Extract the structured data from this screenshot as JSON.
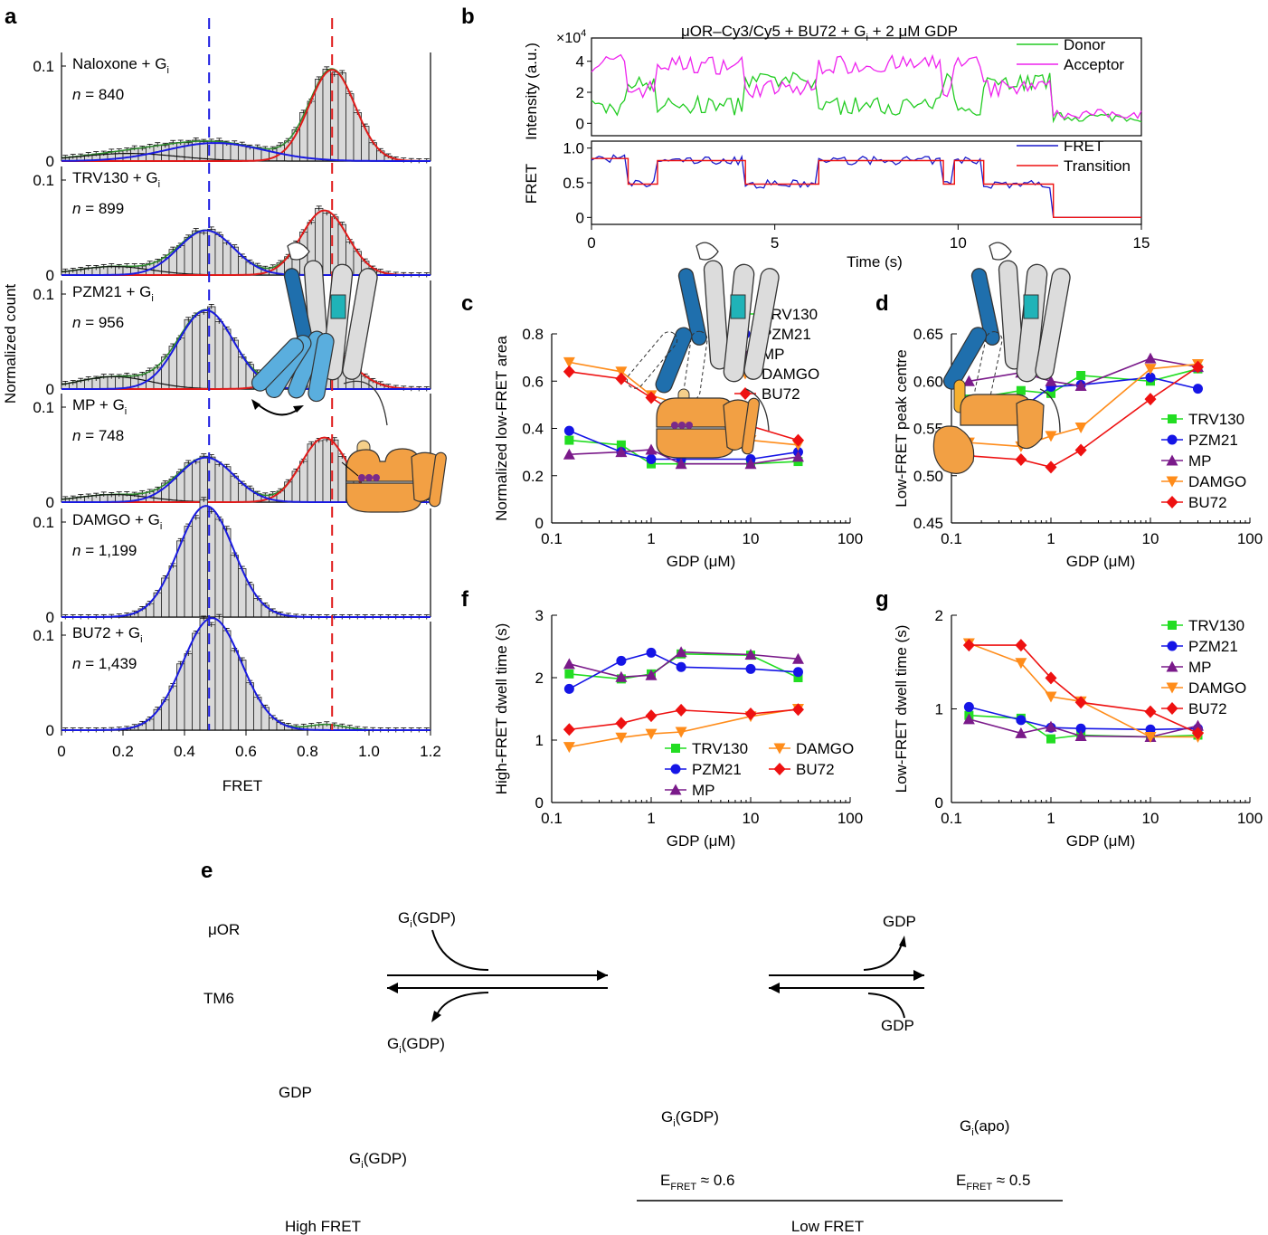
{
  "panel_letters": [
    "a",
    "b",
    "c",
    "d",
    "e",
    "f",
    "g"
  ],
  "chart_data": [
    {
      "id": "a",
      "type": "bar",
      "xlabel": "FRET",
      "ylabel": "Normalized count",
      "xlim": [
        0,
        1.2
      ],
      "ylim": [
        0,
        0.12
      ],
      "xticks": [
        "0",
        "0.2",
        "0.4",
        "0.6",
        "0.8",
        "1.0",
        "1.2"
      ],
      "yticks": [
        "0",
        "0.1"
      ],
      "vlines": {
        "low": 0.48,
        "high": 0.88
      },
      "histograms": [
        {
          "label": "Naloxone + G",
          "sub": "i",
          "n": "840",
          "low": {
            "mu": 0.5,
            "sd": 0.16,
            "a": 0.019
          },
          "high": {
            "mu": 0.88,
            "sd": 0.075,
            "a": 0.096
          },
          "bg": {
            "mu": 0.22,
            "sd": 0.16,
            "a": 0.008
          }
        },
        {
          "label": "TRV130 + G",
          "sub": "i",
          "n": "899",
          "low": {
            "mu": 0.47,
            "sd": 0.09,
            "a": 0.047
          },
          "high": {
            "mu": 0.855,
            "sd": 0.075,
            "a": 0.068
          },
          "bg": {
            "mu": 0.17,
            "sd": 0.12,
            "a": 0.009
          }
        },
        {
          "label": "PZM21 + G",
          "sub": "i",
          "n": "956",
          "low": {
            "mu": 0.47,
            "sd": 0.09,
            "a": 0.083
          },
          "high": {
            "mu": 0.85,
            "sd": 0.09,
            "a": 0.045
          },
          "bg": {
            "mu": 0.17,
            "sd": 0.12,
            "a": 0.013
          }
        },
        {
          "label": "MP + G",
          "sub": "i",
          "n": "748",
          "low": {
            "mu": 0.47,
            "sd": 0.09,
            "a": 0.047
          },
          "high": {
            "mu": 0.855,
            "sd": 0.075,
            "a": 0.068
          },
          "bg": {
            "mu": 0.17,
            "sd": 0.12,
            "a": 0.008
          }
        },
        {
          "label": "DAMGO + G",
          "sub": "i",
          "n": "1,199",
          "low": {
            "mu": 0.47,
            "sd": 0.09,
            "a": 0.117
          },
          "high": {
            "mu": 0.86,
            "sd": 0.05,
            "a": 0.0
          },
          "bg": {
            "mu": 0.2,
            "sd": 0.2,
            "a": 0.0
          }
        },
        {
          "label": "BU72 + G",
          "sub": "i",
          "n": "1,439",
          "low": {
            "mu": 0.49,
            "sd": 0.095,
            "a": 0.118
          },
          "high": {
            "mu": 0.86,
            "sd": 0.06,
            "a": 0.006
          },
          "bg": {
            "mu": 0.2,
            "sd": 0.2,
            "a": 0.0
          }
        }
      ]
    },
    {
      "id": "b",
      "type": "line",
      "title": "μOR–Cy3/Cy5 + BU72 + G",
      "title_sub": "i",
      "title_tail": " + 2 μM GDP",
      "xlabel": "Time (s)",
      "xlim": [
        0,
        15
      ],
      "xticks": [
        "0",
        "5",
        "10",
        "15"
      ],
      "top": {
        "ylabel": "Intensity (a.u.)",
        "scale": "×10",
        "scale_exp": "4",
        "ylim": [
          -0.8,
          5.5
        ],
        "yticks": [
          "0",
          "2",
          "4"
        ],
        "legend": [
          "Donor",
          "Acceptor"
        ],
        "colors": [
          "#22cc22",
          "#ee22ee"
        ]
      },
      "bottom": {
        "ylabel": "FRET",
        "ylim": [
          -0.1,
          1.1
        ],
        "yticks": [
          "0",
          "0.5",
          "1.0"
        ],
        "legend": [
          "FRET",
          "Transition"
        ],
        "colors": [
          "#1a1acc",
          "#ee1111"
        ]
      },
      "segments": [
        [
          0,
          1.0,
          0.85
        ],
        [
          1.0,
          1.8,
          0.48
        ],
        [
          1.8,
          4.2,
          0.82
        ],
        [
          4.2,
          6.2,
          0.48
        ],
        [
          6.2,
          9.6,
          0.82
        ],
        [
          9.6,
          9.9,
          0.48
        ],
        [
          9.9,
          10.7,
          0.82
        ],
        [
          10.7,
          12.6,
          0.48
        ],
        [
          12.6,
          15,
          0.0
        ]
      ]
    },
    {
      "id": "c",
      "type": "line",
      "xlabel": "GDP (μM)",
      "ylabel": "Normalized low-FRET area",
      "xlog": true,
      "xlim": [
        0.1,
        100
      ],
      "ylim": [
        0,
        0.8
      ],
      "xticks": [
        "0.1",
        "1",
        "10",
        "100"
      ],
      "yticks": [
        "0",
        "0.2",
        "0.4",
        "0.6",
        "0.8"
      ],
      "x": [
        0.15,
        0.5,
        1,
        2,
        10,
        30
      ],
      "series": [
        {
          "name": "TRV130",
          "values": [
            0.35,
            0.33,
            0.25,
            0.25,
            0.25,
            0.26
          ]
        },
        {
          "name": "PZM21",
          "values": [
            0.39,
            0.3,
            0.27,
            0.27,
            0.27,
            0.3
          ]
        },
        {
          "name": "MP",
          "values": [
            0.29,
            0.3,
            0.31,
            0.25,
            0.25,
            0.28
          ]
        },
        {
          "name": "DAMGO",
          "values": [
            0.68,
            0.64,
            0.54,
            0.5,
            0.35,
            0.33
          ]
        },
        {
          "name": "BU72",
          "values": [
            0.64,
            0.61,
            0.53,
            0.45,
            0.41,
            0.35
          ]
        }
      ],
      "legend_position": "top-right"
    },
    {
      "id": "d",
      "type": "line",
      "xlabel": "GDP (μM)",
      "ylabel": "Low-FRET peak centre",
      "xlog": true,
      "xlim": [
        0.1,
        100
      ],
      "ylim": [
        0.45,
        0.65
      ],
      "xticks": [
        "0.1",
        "1",
        "10",
        "100"
      ],
      "yticks": [
        "0.45",
        "0.50",
        "0.55",
        "0.60",
        "0.65"
      ],
      "x": [
        0.15,
        0.5,
        1,
        2,
        10,
        30
      ],
      "series": [
        {
          "name": "TRV130",
          "values": [
            0.581,
            0.59,
            0.587,
            0.606,
            0.6,
            0.613
          ]
        },
        {
          "name": "PZM21",
          "values": [
            0.559,
            0.571,
            0.594,
            0.596,
            0.604,
            0.592
          ]
        },
        {
          "name": "MP",
          "values": [
            0.6,
            0.609,
            0.6,
            0.595,
            0.624,
            0.615
          ]
        },
        {
          "name": "DAMGO",
          "values": [
            0.535,
            0.531,
            0.542,
            0.551,
            0.613,
            0.618
          ]
        },
        {
          "name": "BU72",
          "values": [
            0.521,
            0.517,
            0.509,
            0.527,
            0.581,
            0.615
          ]
        }
      ],
      "legend_position": "right"
    },
    {
      "id": "f",
      "type": "line",
      "xlabel": "GDP (μM)",
      "ylabel": "High-FRET dwell time (s)",
      "xlog": true,
      "xlim": [
        0.1,
        100
      ],
      "ylim": [
        0,
        3
      ],
      "xticks": [
        "0.1",
        "1",
        "10",
        "100"
      ],
      "yticks": [
        "0",
        "1",
        "2",
        "3"
      ],
      "x": [
        0.15,
        0.5,
        1,
        2,
        10,
        30
      ],
      "series": [
        {
          "name": "TRV130",
          "values": [
            2.06,
            1.98,
            2.06,
            2.38,
            2.36,
            2.0
          ]
        },
        {
          "name": "PZM21",
          "values": [
            1.82,
            2.27,
            2.4,
            2.17,
            2.14,
            2.09
          ]
        },
        {
          "name": "MP",
          "values": [
            2.22,
            2.01,
            2.04,
            2.41,
            2.37,
            2.3
          ]
        },
        {
          "name": "DAMGO",
          "values": [
            0.89,
            1.04,
            1.1,
            1.13,
            1.38,
            1.5
          ]
        },
        {
          "name": "BU72",
          "values": [
            1.17,
            1.27,
            1.39,
            1.48,
            1.42,
            1.49
          ]
        }
      ],
      "legend_position": "bottom-right"
    },
    {
      "id": "g",
      "type": "line",
      "xlabel": "GDP (μM)",
      "ylabel": "Low-FRET dwell time (s)",
      "xlog": true,
      "xlim": [
        0.1,
        100
      ],
      "ylim": [
        0,
        2
      ],
      "xticks": [
        "0.1",
        "1",
        "10",
        "100"
      ],
      "yticks": [
        "0",
        "1",
        "2"
      ],
      "x": [
        0.15,
        0.5,
        1,
        2,
        10,
        30
      ],
      "series": [
        {
          "name": "TRV130",
          "values": [
            0.93,
            0.9,
            0.68,
            0.72,
            0.7,
            0.72
          ]
        },
        {
          "name": "PZM21",
          "values": [
            1.02,
            0.88,
            0.8,
            0.79,
            0.78,
            0.79
          ]
        },
        {
          "name": "MP",
          "values": [
            0.89,
            0.74,
            0.81,
            0.71,
            0.7,
            0.82
          ]
        },
        {
          "name": "DAMGO",
          "values": [
            1.7,
            1.49,
            1.13,
            1.08,
            0.7,
            0.7
          ]
        },
        {
          "name": "BU72",
          "values": [
            1.68,
            1.68,
            1.33,
            1.07,
            0.97,
            0.74
          ]
        }
      ],
      "legend_position": "top-right"
    }
  ],
  "series_colors": {
    "TRV130": "#22dd22",
    "PZM21": "#1515e6",
    "MP": "#7a1a8a",
    "DAMGO": "#ff8c1a",
    "BU72": "#ee1111"
  },
  "series_markers": {
    "TRV130": "square",
    "PZM21": "circle",
    "MP": "triangle-up",
    "DAMGO": "triangle-down",
    "BU72": "diamond"
  },
  "schematic": {
    "labels": {
      "muor": "μOR",
      "tm6": "TM6",
      "gdp_left": "GDP",
      "gi_in": "G",
      "gi_in_sub": "i",
      "gi_in_tail": "(GDP)",
      "gi_out": "G",
      "gi_out_sub": "i",
      "gi_out_tail": "(GDP)",
      "gi_left": "G",
      "gi_left_sub": "i",
      "gi_left_tail": "(GDP)",
      "gi_mid": "G",
      "gi_mid_sub": "i",
      "gi_mid_tail": "(GDP)",
      "gdp_out": "GDP",
      "gdp_in": "GDP",
      "gi_apo": "G",
      "gi_apo_sub": "i",
      "gi_apo_tail": "(apo)",
      "efret_mid": "E",
      "efret_mid_sub": "FRET",
      "efret_mid_val": " ≈ 0.6",
      "efret_right": "E",
      "efret_right_sub": "FRET",
      "efret_right_val": " ≈ 0.5",
      "high_fret": "High FRET",
      "low_fret": "Low FRET"
    },
    "colors": {
      "tm6": "#1f6fad",
      "tm6_light": "#5aaede",
      "helix": "#dcdcdc",
      "teal": "#20b3b8",
      "protein": "#f2a044",
      "gdp": "#7a2a8a"
    }
  }
}
